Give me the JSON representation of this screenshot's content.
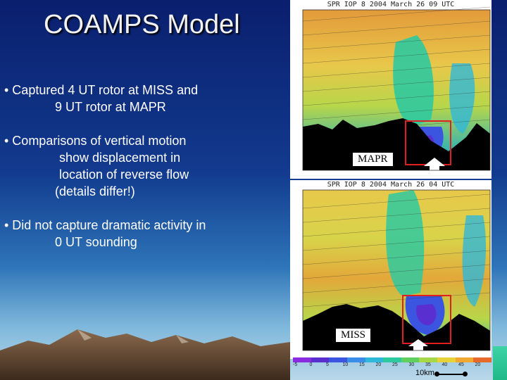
{
  "slide": {
    "title": "COAMPS Model",
    "bullets": [
      "• Captured 4 UT rotor at MISS and",
      "9 UT rotor at MAPR",
      "• Comparisons of vertical motion",
      "show displacement in",
      "location of reverse flow",
      "(details differ!)",
      "• Did not capture dramatic activity in",
      "0 UT sounding"
    ]
  },
  "panels": {
    "top": {
      "title": "SPR IOP 8 2004 March 26 09 UTC",
      "site": "MAPR"
    },
    "bottom": {
      "title": "SPR IOP 8 2004 March 26 04 UTC",
      "site": "MISS"
    }
  },
  "colorbar": {
    "labels": [
      "-5",
      "0",
      "5",
      "10",
      "15",
      "20",
      "25",
      "30",
      "35",
      "40",
      "45"
    ],
    "vector_label": "20",
    "colors": [
      "#8a2be2",
      "#5a2fd0",
      "#3b55e0",
      "#3a8ee8",
      "#2fb8d8",
      "#2fc9a0",
      "#5fcf60",
      "#a6d84a",
      "#e8d23a",
      "#f0a830",
      "#e86a2a"
    ]
  },
  "scale": {
    "label": "10km"
  }
}
